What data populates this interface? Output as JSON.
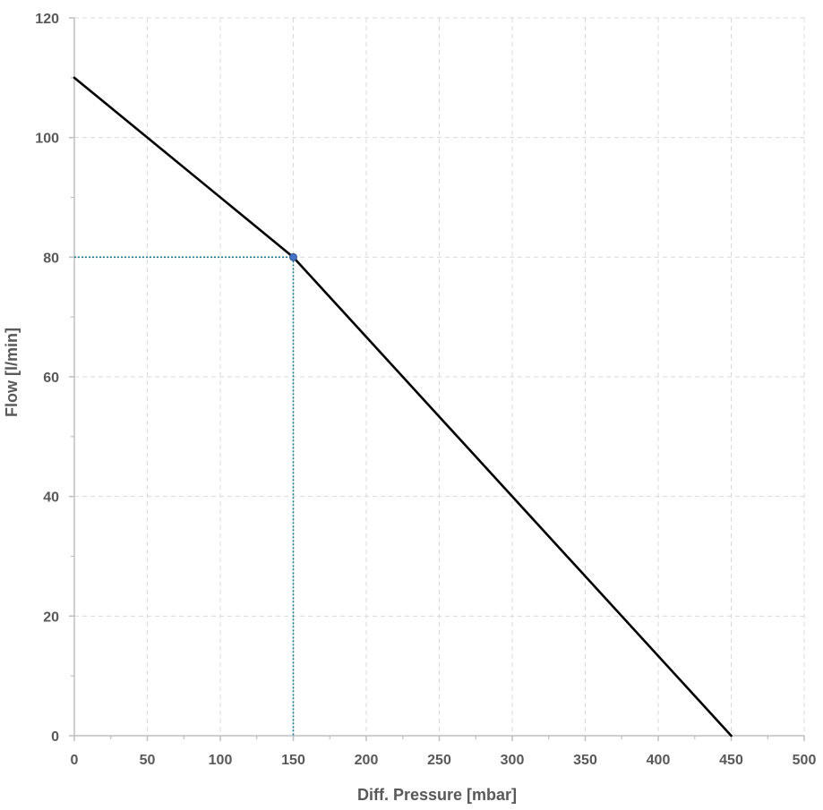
{
  "chart_data": {
    "type": "line",
    "title": "",
    "xlabel": "Diff. Pressure [mbar]",
    "ylabel": "Flow [l/min]",
    "xlim": [
      0,
      500
    ],
    "ylim": [
      0,
      120
    ],
    "x_ticks": [
      0,
      50,
      100,
      150,
      200,
      250,
      300,
      350,
      400,
      450,
      500
    ],
    "y_ticks": [
      0,
      20,
      40,
      60,
      80,
      100,
      120
    ],
    "x_tick_labels": [
      "0",
      "50",
      "100",
      "150",
      "200",
      "250",
      "300",
      "350",
      "400",
      "450",
      "500"
    ],
    "y_tick_labels": [
      "0",
      "20",
      "40",
      "60",
      "80",
      "100",
      "120"
    ],
    "grid": true,
    "legend": "none",
    "series": [
      {
        "x": [
          0,
          150,
          450
        ],
        "y": [
          110,
          80,
          0
        ],
        "color": "#000000"
      }
    ],
    "highlight_point": {
      "x": 150,
      "y": 80,
      "color": "#4472c4",
      "guide_color": "#1f7a8c"
    },
    "colors": {
      "axis": "#bfbfbf",
      "grid": "#d9d9d9",
      "text": "#595959"
    }
  }
}
